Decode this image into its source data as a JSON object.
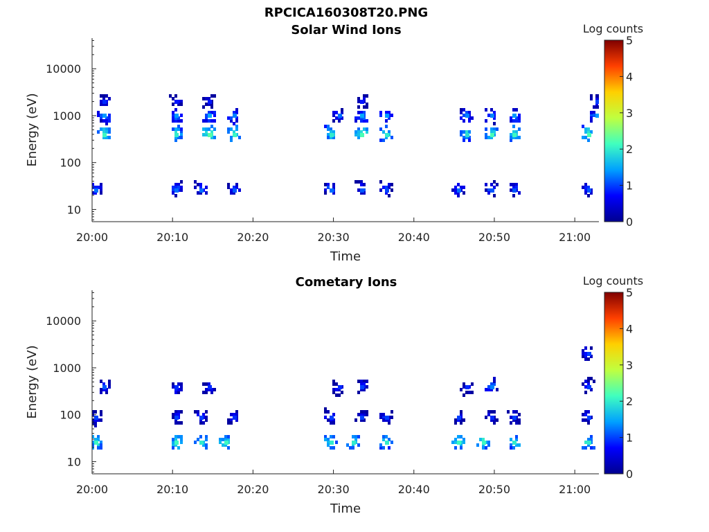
{
  "figure_title": "RPCICA160308T20.PNG",
  "colors": {
    "background": "#ffffff",
    "axis": "#222222",
    "colormap": [
      "#00008f",
      "#0000ff",
      "#00a0ff",
      "#40ffbf",
      "#bfff40",
      "#ffd000",
      "#ff4000",
      "#800000"
    ]
  },
  "chart_data": [
    {
      "type": "heatmap",
      "title": "Solar Wind Ions",
      "xlabel": "Time",
      "ylabel": "Energy (eV)",
      "y_scale": "log",
      "ylim": [
        5.5,
        45000
      ],
      "y_ticks": [
        {
          "value": 10,
          "label": "10"
        },
        {
          "value": 100,
          "label": "100"
        },
        {
          "value": 1000,
          "label": "1000"
        },
        {
          "value": 10000,
          "label": "10000"
        }
      ],
      "xlim": [
        "20:00",
        "21:03"
      ],
      "x_ticks": [
        "20:00",
        "20:10",
        "20:20",
        "20:30",
        "20:40",
        "20:50",
        "21:00"
      ],
      "colorbar": {
        "label": "Log counts",
        "range": [
          0,
          5
        ],
        "ticks": [
          "0",
          "1",
          "2",
          "3",
          "4",
          "5"
        ]
      },
      "blobs": [
        {
          "t": "20:00",
          "e": 30,
          "v": 1.2
        },
        {
          "t": "20:01",
          "e": 450,
          "v": 2.1
        },
        {
          "t": "20:01",
          "e": 1050,
          "v": 1.4
        },
        {
          "t": "20:01",
          "e": 2200,
          "v": 0.9
        },
        {
          "t": "20:10",
          "e": 30,
          "v": 1.2
        },
        {
          "t": "20:10",
          "e": 450,
          "v": 2.0
        },
        {
          "t": "20:10",
          "e": 1050,
          "v": 1.4
        },
        {
          "t": "20:10",
          "e": 2200,
          "v": 0.8
        },
        {
          "t": "20:13",
          "e": 30,
          "v": 1.2
        },
        {
          "t": "20:14",
          "e": 450,
          "v": 2.3
        },
        {
          "t": "20:14",
          "e": 1050,
          "v": 1.5
        },
        {
          "t": "20:14",
          "e": 2200,
          "v": 0.8
        },
        {
          "t": "20:17",
          "e": 30,
          "v": 1.1
        },
        {
          "t": "20:17",
          "e": 450,
          "v": 2.1
        },
        {
          "t": "20:17",
          "e": 1050,
          "v": 1.3
        },
        {
          "t": "20:29",
          "e": 30,
          "v": 1.2
        },
        {
          "t": "20:29",
          "e": 450,
          "v": 2.0
        },
        {
          "t": "20:30",
          "e": 1050,
          "v": 1.2
        },
        {
          "t": "20:33",
          "e": 30,
          "v": 1.1
        },
        {
          "t": "20:33",
          "e": 450,
          "v": 2.2
        },
        {
          "t": "20:33",
          "e": 1050,
          "v": 1.5
        },
        {
          "t": "20:33",
          "e": 2200,
          "v": 0.8
        },
        {
          "t": "20:36",
          "e": 30,
          "v": 1.0
        },
        {
          "t": "20:36",
          "e": 450,
          "v": 2.0
        },
        {
          "t": "20:36",
          "e": 1050,
          "v": 1.4
        },
        {
          "t": "20:45",
          "e": 30,
          "v": 1.2
        },
        {
          "t": "20:46",
          "e": 450,
          "v": 1.9
        },
        {
          "t": "20:46",
          "e": 1050,
          "v": 1.3
        },
        {
          "t": "20:49",
          "e": 30,
          "v": 1.1
        },
        {
          "t": "20:49",
          "e": 450,
          "v": 2.2
        },
        {
          "t": "20:49",
          "e": 1050,
          "v": 1.3
        },
        {
          "t": "20:52",
          "e": 30,
          "v": 1.1
        },
        {
          "t": "20:52",
          "e": 450,
          "v": 2.1
        },
        {
          "t": "20:52",
          "e": 1050,
          "v": 1.4
        },
        {
          "t": "21:01",
          "e": 30,
          "v": 1.1
        },
        {
          "t": "21:01",
          "e": 450,
          "v": 2.2
        },
        {
          "t": "21:02",
          "e": 1050,
          "v": 1.4
        },
        {
          "t": "21:02",
          "e": 2200,
          "v": 1.0
        }
      ]
    },
    {
      "type": "heatmap",
      "title": "Cometary Ions",
      "xlabel": "Time",
      "ylabel": "Energy (eV)",
      "y_scale": "log",
      "ylim": [
        5.5,
        45000
      ],
      "y_ticks": [
        {
          "value": 10,
          "label": "10"
        },
        {
          "value": 100,
          "label": "100"
        },
        {
          "value": 1000,
          "label": "1000"
        },
        {
          "value": 10000,
          "label": "10000"
        }
      ],
      "xlim": [
        "20:00",
        "21:03"
      ],
      "x_ticks": [
        "20:00",
        "20:10",
        "20:20",
        "20:30",
        "20:40",
        "20:50",
        "21:00"
      ],
      "colorbar": {
        "label": "Log counts",
        "range": [
          0,
          5
        ],
        "ticks": [
          "0",
          "1",
          "2",
          "3",
          "4",
          "5"
        ]
      },
      "blobs": [
        {
          "t": "20:00",
          "e": 28,
          "v": 2.1
        },
        {
          "t": "20:00",
          "e": 90,
          "v": 1.0
        },
        {
          "t": "20:01",
          "e": 450,
          "v": 1.1
        },
        {
          "t": "20:10",
          "e": 28,
          "v": 2.1
        },
        {
          "t": "20:10",
          "e": 100,
          "v": 1.0
        },
        {
          "t": "20:10",
          "e": 400,
          "v": 0.9
        },
        {
          "t": "20:13",
          "e": 28,
          "v": 2.0
        },
        {
          "t": "20:13",
          "e": 100,
          "v": 1.0
        },
        {
          "t": "20:14",
          "e": 400,
          "v": 0.9
        },
        {
          "t": "20:16",
          "e": 28,
          "v": 2.1
        },
        {
          "t": "20:17",
          "e": 100,
          "v": 0.9
        },
        {
          "t": "20:29",
          "e": 28,
          "v": 2.0
        },
        {
          "t": "20:29",
          "e": 100,
          "v": 1.0
        },
        {
          "t": "20:30",
          "e": 400,
          "v": 0.9
        },
        {
          "t": "20:32",
          "e": 28,
          "v": 2.0
        },
        {
          "t": "20:33",
          "e": 100,
          "v": 1.0
        },
        {
          "t": "20:33",
          "e": 450,
          "v": 1.0
        },
        {
          "t": "20:36",
          "e": 28,
          "v": 2.0
        },
        {
          "t": "20:36",
          "e": 100,
          "v": 1.0
        },
        {
          "t": "20:45",
          "e": 28,
          "v": 2.1
        },
        {
          "t": "20:45",
          "e": 100,
          "v": 1.0
        },
        {
          "t": "20:46",
          "e": 400,
          "v": 0.9
        },
        {
          "t": "20:48",
          "e": 28,
          "v": 2.1
        },
        {
          "t": "20:49",
          "e": 100,
          "v": 0.9
        },
        {
          "t": "20:49",
          "e": 450,
          "v": 1.3
        },
        {
          "t": "20:52",
          "e": 28,
          "v": 2.0
        },
        {
          "t": "20:52",
          "e": 100,
          "v": 1.0
        },
        {
          "t": "21:01",
          "e": 28,
          "v": 2.0
        },
        {
          "t": "21:01",
          "e": 100,
          "v": 1.0
        },
        {
          "t": "21:01",
          "e": 450,
          "v": 1.0
        },
        {
          "t": "21:01",
          "e": 2200,
          "v": 1.0
        }
      ]
    }
  ]
}
